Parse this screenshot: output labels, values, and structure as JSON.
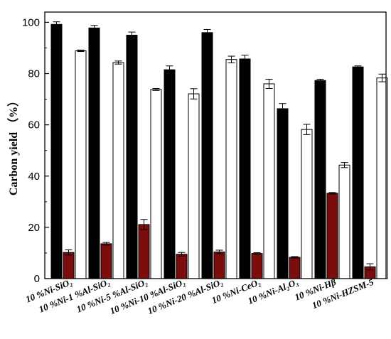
{
  "chart_data": {
    "type": "bar",
    "title": "",
    "xlabel": "",
    "ylabel": "Carbon yield （%）",
    "ylim": [
      0,
      104
    ],
    "yticks": [
      0,
      20,
      40,
      60,
      80,
      100
    ],
    "grid": false,
    "legend": "none",
    "categories": [
      "10 %Ni-SiO₂",
      "10 %Ni-1 %Al-SiO₂",
      "10 %Ni-5 %Al-SiO₂",
      "10 %Ni-10 %Al-SiO₂",
      "10 %Ni-20 %Al-SiO₂",
      "10 %Ni-CeO₂",
      "10 %Ni-Al₂O₃",
      "10 %Ni-Hβ",
      "10 %Ni-HZSM-5"
    ],
    "series": [
      {
        "color": "#000000",
        "values": [
          99.2,
          97.8,
          95.0,
          81.5,
          96.0,
          85.7,
          66.3,
          77.3,
          82.6
        ],
        "errors": [
          1.0,
          1.0,
          1.2,
          1.5,
          1.2,
          1.5,
          2.0,
          0.5,
          0.4
        ]
      },
      {
        "color": "#7b0d0d",
        "values": [
          10.2,
          13.6,
          21.1,
          9.5,
          10.4,
          9.8,
          8.3,
          33.3,
          4.6
        ],
        "errors": [
          1.0,
          0.5,
          2.0,
          0.7,
          0.7,
          0.3,
          0.3,
          0.3,
          1.2
        ]
      },
      {
        "color": "#ffffff",
        "values": [
          88.9,
          84.3,
          73.8,
          72.1,
          85.5,
          76.0,
          58.2,
          44.3,
          78.3
        ],
        "errors": [
          0.3,
          0.6,
          0.4,
          2.0,
          1.3,
          1.8,
          2.0,
          1.0,
          1.5
        ]
      }
    ]
  }
}
